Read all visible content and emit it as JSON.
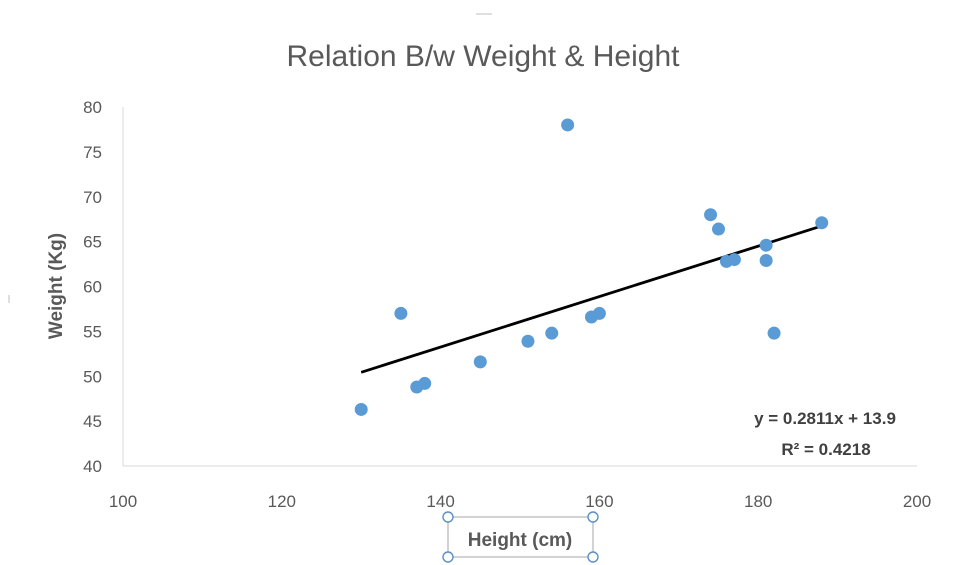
{
  "chart_data": {
    "type": "scatter",
    "title": "Relation B/w Weight & Height",
    "xlabel": "Height (cm)",
    "ylabel": "Weight (Kg)",
    "xlim": [
      100,
      200
    ],
    "ylim": [
      40,
      80
    ],
    "x_ticks": [
      "100",
      "120",
      "140",
      "160",
      "180",
      "200"
    ],
    "y_ticks": [
      "40",
      "45",
      "50",
      "55",
      "60",
      "65",
      "70",
      "75",
      "80"
    ],
    "grid": false,
    "legend": "none",
    "marker_color": "#5b9bd5",
    "trendline_color": "#000000",
    "series": [
      {
        "x": [
          130,
          135,
          137,
          138,
          145,
          151,
          154,
          156,
          159,
          160,
          174,
          175,
          176,
          177,
          181,
          181,
          182,
          188
        ],
        "y": [
          46.3,
          57,
          48.8,
          49.2,
          51.6,
          53.9,
          54.8,
          78,
          56.6,
          57,
          68,
          66.4,
          62.8,
          63,
          64.6,
          62.9,
          54.8,
          67.1
        ]
      }
    ],
    "trendline": {
      "type": "linear",
      "slope": 0.2811,
      "intercept": 13.9,
      "x_range": [
        130,
        188
      ],
      "equation_label": "y = 0.2811x + 13.9",
      "r_squared_label": "R² = 0.4218"
    }
  }
}
